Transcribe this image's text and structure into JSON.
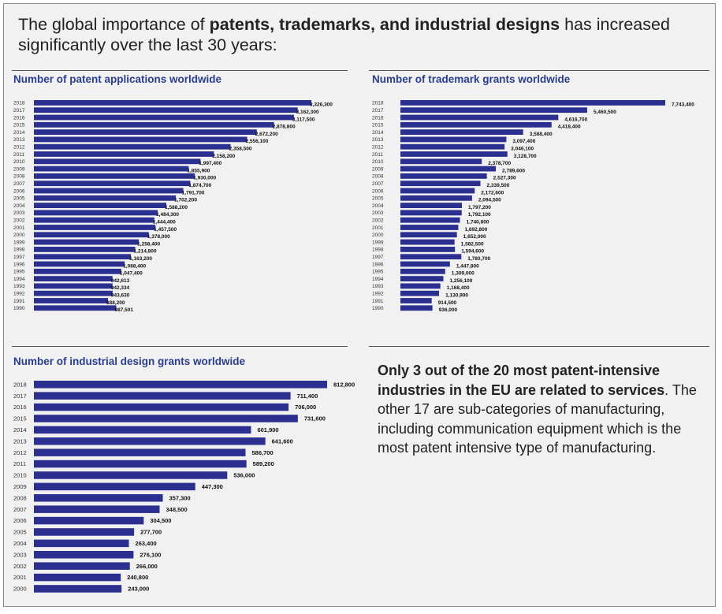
{
  "headline": {
    "part1": "The global importance of ",
    "bold": "patents, trademarks, and industrial designs",
    "part2": " has increased significantly over the last 30 years:"
  },
  "note": {
    "bold": "Only 3 out of the 20 most patent-intensive industries in the EU are related to services",
    "rest": ". The other 17 are sub-categories of manufacturing, including communication equipment which is the most patent intensive type of manufacturing."
  },
  "colors": {
    "bar": "#2b2f8f",
    "title": "#2a3d8f"
  },
  "chart_data": [
    {
      "type": "bar",
      "orientation": "horizontal",
      "title": "Number of patent applications worldwide",
      "categories": [
        "2018",
        "2017",
        "2016",
        "2015",
        "2014",
        "2013",
        "2012",
        "2011",
        "2010",
        "2009",
        "2008",
        "2007",
        "2006",
        "2005",
        "2004",
        "2003",
        "2002",
        "2001",
        "2000",
        "1999",
        "1998",
        "1997",
        "1996",
        "1995",
        "1994",
        "1993",
        "1992",
        "1991",
        "1990"
      ],
      "values": [
        3326300,
        3162300,
        3117500,
        2878800,
        2672200,
        2556100,
        2358500,
        2158200,
        1997400,
        1855900,
        1930000,
        1874700,
        1791700,
        1702200,
        1588200,
        1484300,
        1444400,
        1457500,
        1378000,
        1258400,
        1214800,
        1163200,
        1088400,
        1047400,
        942613,
        942334,
        943630,
        888200,
        987501
      ],
      "labels": [
        "3,326,300",
        "3,162,300",
        "3,117,500",
        "2,878,800",
        "2,672,200",
        "2,556,100",
        "2,358,500",
        "2,158,200",
        "1,997,400",
        "1,855,900",
        "1,930,000",
        "1,874,700",
        "1,791,700",
        "1,702,200",
        "1,588,200",
        "1,484,300",
        "1,444,400",
        "1,457,500",
        "1,378,000",
        "1,258,400",
        "1,214,800",
        "1,163,200",
        "1,088,400",
        "1,047,400",
        "942,613",
        "942,334",
        "943,630",
        "888,200",
        "987,501"
      ]
    },
    {
      "type": "bar",
      "orientation": "horizontal",
      "title": "Number of trademark grants worldwide",
      "categories": [
        "2018",
        "2017",
        "2016",
        "2015",
        "2014",
        "2013",
        "2012",
        "2011",
        "2010",
        "2009",
        "2008",
        "2007",
        "2006",
        "2005",
        "2004",
        "2003",
        "2002",
        "2001",
        "2000",
        "1999",
        "1998",
        "1997",
        "1996",
        "1995",
        "1994",
        "1993",
        "1992",
        "1991",
        "1990"
      ],
      "values": [
        7743400,
        5460500,
        4616700,
        4418400,
        3588400,
        3097400,
        3046100,
        3128700,
        2378700,
        2789600,
        2527300,
        2339500,
        2172600,
        2094500,
        1797200,
        1792100,
        1740800,
        1692800,
        1652000,
        1582500,
        1594600,
        1780700,
        1447800,
        1309000,
        1256100,
        1168400,
        1130900,
        914500,
        936000
      ],
      "labels": [
        "7,743,400",
        "5,460,500",
        "4,616,700",
        "4,418,400",
        "3,588,400",
        "3,097,400",
        "3,046,100",
        "3,128,700",
        "2,378,700",
        "2,789,600",
        "2,527,300",
        "2,339,500",
        "2,172,600",
        "2,094,500",
        "1,797,200",
        "1,792,100",
        "1,740,800",
        "1,692,800",
        "1,652,000",
        "1,582,500",
        "1,594,600",
        "1,780,700",
        "1,447,800",
        "1,309,000",
        "1,256,100",
        "1,168,400",
        "1,130,900",
        "914,500",
        "936,000"
      ]
    },
    {
      "type": "bar",
      "orientation": "horizontal",
      "title": "Number of industrial design grants worldwide",
      "categories": [
        "2018",
        "2017",
        "2016",
        "2015",
        "2014",
        "2013",
        "2012",
        "2011",
        "2010",
        "2009",
        "2008",
        "2007",
        "2006",
        "2005",
        "2004",
        "2003",
        "2002",
        "2001",
        "2000"
      ],
      "values": [
        812800,
        711400,
        706000,
        731600,
        601900,
        641600,
        586700,
        589200,
        536000,
        447300,
        357300,
        348500,
        304500,
        277700,
        263400,
        276100,
        266000,
        240800,
        243000
      ],
      "labels": [
        "812,800",
        "711,400",
        "706,000",
        "731,600",
        "601,900",
        "641,600",
        "586,700",
        "589,200",
        "536,000",
        "447,300",
        "357,300",
        "348,500",
        "304,500",
        "277,700",
        "263,400",
        "276,100",
        "266,000",
        "240,800",
        "243,000"
      ]
    }
  ]
}
